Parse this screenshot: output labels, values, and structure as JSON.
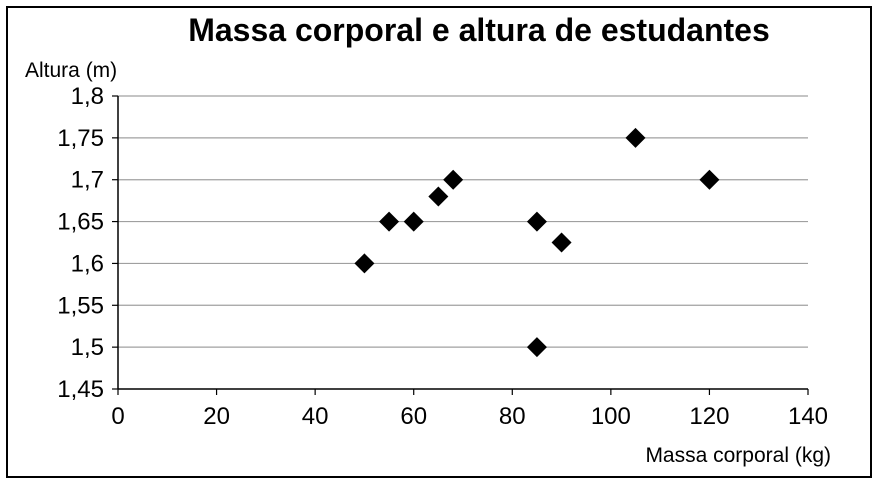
{
  "chart_data": {
    "type": "scatter",
    "title": "Massa corporal e altura de estudantes",
    "xlabel": "Massa corporal (kg)",
    "ylabel": "Altura (m)",
    "xlim": [
      0,
      140
    ],
    "ylim": [
      1.45,
      1.8
    ],
    "x_ticks": [
      0,
      20,
      40,
      60,
      80,
      100,
      120,
      140
    ],
    "y_ticks": [
      1.45,
      1.5,
      1.55,
      1.6,
      1.65,
      1.7,
      1.75,
      1.8
    ],
    "x_tick_labels": [
      "0",
      "20",
      "40",
      "60",
      "80",
      "100",
      "120",
      "140"
    ],
    "y_tick_labels": [
      "1,45",
      "1,5",
      "1,55",
      "1,6",
      "1,65",
      "1,7",
      "1,75",
      "1,8"
    ],
    "grid": "horizontal",
    "legend": "none",
    "marker": "diamond",
    "marker_color": "#000000",
    "grid_color": "#a0a0a0",
    "points": [
      {
        "x": 50,
        "y": 1.6
      },
      {
        "x": 55,
        "y": 1.65
      },
      {
        "x": 60,
        "y": 1.65
      },
      {
        "x": 65,
        "y": 1.68
      },
      {
        "x": 68,
        "y": 1.7
      },
      {
        "x": 85,
        "y": 1.65
      },
      {
        "x": 85,
        "y": 1.5
      },
      {
        "x": 90,
        "y": 1.625
      },
      {
        "x": 105,
        "y": 1.75
      },
      {
        "x": 120,
        "y": 1.7
      }
    ]
  }
}
